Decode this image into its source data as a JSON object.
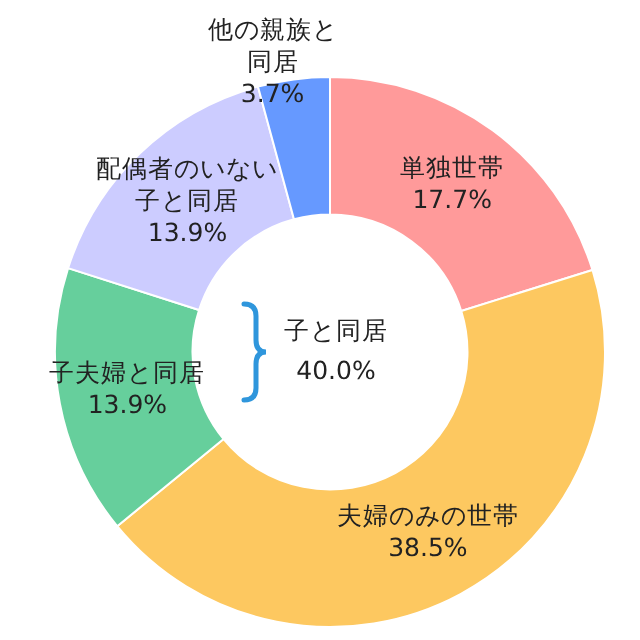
{
  "chart_data": {
    "type": "donut",
    "categories": [
      "単独世帯",
      "夫婦のみの世帯",
      "子夫婦と同居",
      "配偶者のいない子と同居",
      "他の親族と同居"
    ],
    "values": [
      17.7,
      38.5,
      13.9,
      13.9,
      3.7
    ],
    "value_labels": [
      "17.7%",
      "38.5%",
      "13.9%",
      "13.9%",
      "3.7%"
    ],
    "colors": [
      "#ff9a9a",
      "#fdc860",
      "#66cf9c",
      "#ccccff",
      "#6699ff"
    ],
    "annotations": [
      "子と同居",
      "40.0%"
    ],
    "legend": false
  }
}
